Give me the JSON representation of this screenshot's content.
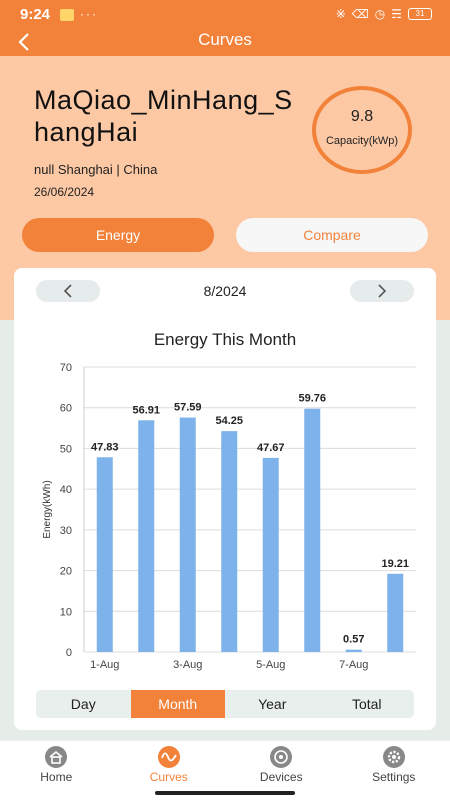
{
  "status": {
    "time": "9:24",
    "dots": "···",
    "battery": "31"
  },
  "header": {
    "title": "Curves"
  },
  "plant": {
    "name": "MaQiao_MinHang_ShangHai",
    "location": "null Shanghai | China",
    "date": "26/06/2024",
    "capacity_value": "9.8",
    "capacity_label": "Capacity(kWp)"
  },
  "tabs": {
    "energy": "Energy",
    "compare": "Compare"
  },
  "period": {
    "label": "8/2024"
  },
  "range_tabs": [
    "Day",
    "Month",
    "Year",
    "Total"
  ],
  "range_selected": "Month",
  "nav": [
    {
      "label": "Home",
      "icon": "home-icon"
    },
    {
      "label": "Curves",
      "icon": "curves-icon"
    },
    {
      "label": "Devices",
      "icon": "devices-icon"
    },
    {
      "label": "Settings",
      "icon": "settings-icon"
    }
  ],
  "colors": {
    "accent": "#f2823a",
    "peach": "#fdc9a5",
    "bar": "#7db3ea"
  },
  "chart_data": {
    "type": "bar",
    "title": "Energy This Month",
    "ylabel": "Energy(kWh)",
    "xlabel": "",
    "ylim": [
      0,
      70
    ],
    "yticks": [
      0,
      10,
      20,
      30,
      40,
      50,
      60,
      70
    ],
    "grid": true,
    "categories": [
      "1-Aug",
      "2-Aug",
      "3-Aug",
      "4-Aug",
      "5-Aug",
      "6-Aug",
      "7-Aug",
      "8-Aug"
    ],
    "xtick_labels": [
      "1-Aug",
      "",
      "3-Aug",
      "",
      "5-Aug",
      "",
      "7-Aug",
      ""
    ],
    "values": [
      47.83,
      56.91,
      57.59,
      54.25,
      47.67,
      59.76,
      0.57,
      19.21
    ],
    "data_labels": [
      "47.83",
      "56.91",
      "57.59",
      "54.25",
      "47.67",
      "59.76",
      "0.57",
      "19.21"
    ]
  }
}
